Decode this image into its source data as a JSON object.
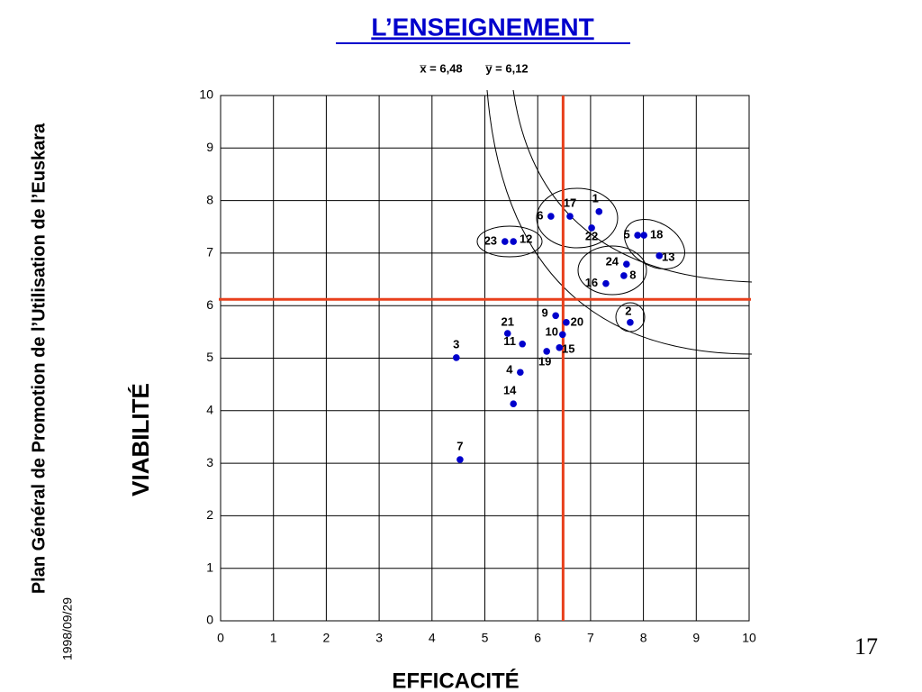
{
  "chart_data": {
    "type": "scatter",
    "title": "L’ENSEIGNEMENT",
    "xlabel": "EFFICACITÉ",
    "ylabel": "VIABILITÉ",
    "side_text": "Plan Général de Promotion de l’Utilisation de l’Euskara",
    "date": "1998/09/29",
    "page_number": "17",
    "mean_x": {
      "value": 6.48,
      "label": "x̅ = 6,48"
    },
    "mean_y": {
      "value": 6.12,
      "label": "y̅ = 6,12"
    },
    "xlim": [
      0,
      10
    ],
    "ylim": [
      0,
      10
    ],
    "xticks": [
      0,
      1,
      2,
      3,
      4,
      5,
      6,
      7,
      8,
      9,
      10
    ],
    "yticks": [
      0,
      1,
      2,
      3,
      4,
      5,
      6,
      7,
      8,
      9,
      10
    ],
    "grid": true,
    "color": "#0000cc",
    "mean_color": "#e8401c",
    "labels": [
      "1",
      "17",
      "6",
      "22",
      "23",
      "12",
      "5",
      "18",
      "13",
      "24",
      "8",
      "16",
      "2",
      "9",
      "20",
      "10",
      "21",
      "11",
      "15",
      "19",
      "3",
      "4",
      "14",
      "7"
    ],
    "x": [
      7.16,
      6.61,
      6.25,
      7.02,
      5.38,
      5.54,
      7.89,
      8.01,
      8.3,
      7.68,
      7.63,
      7.29,
      7.75,
      6.34,
      6.54,
      6.47,
      5.43,
      5.71,
      6.41,
      6.17,
      4.46,
      5.67,
      5.54,
      4.53
    ],
    "values": [
      7.79,
      7.7,
      7.7,
      7.48,
      7.22,
      7.22,
      7.34,
      7.34,
      6.95,
      6.79,
      6.57,
      6.42,
      5.68,
      5.81,
      5.68,
      5.45,
      5.47,
      5.27,
      5.2,
      5.13,
      5.01,
      4.73,
      4.13,
      3.07
    ]
  }
}
